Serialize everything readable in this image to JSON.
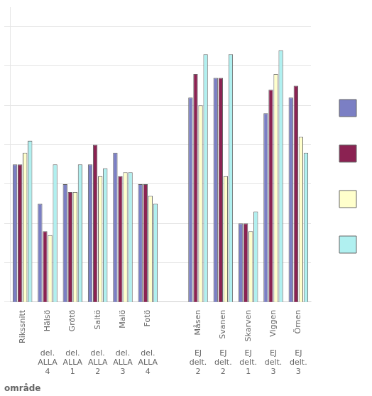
{
  "chart_data": {
    "type": "bar",
    "categories": [
      "Rikssnitt",
      "Hälsö",
      "Grötö",
      "Saltö",
      "Malö",
      "Fotö",
      null,
      "Måsen",
      "Svanen",
      "Skarven",
      "Viggen",
      "Örnen"
    ],
    "series": [
      {
        "color": "#7b7fc4",
        "values": [
          2.65,
          2.55,
          2.6,
          2.65,
          2.68,
          2.6,
          null,
          2.82,
          2.87,
          2.5,
          2.78,
          2.82
        ]
      },
      {
        "color": "#8b2252",
        "values": [
          2.65,
          2.48,
          2.58,
          2.7,
          2.62,
          2.6,
          null,
          2.88,
          2.87,
          2.5,
          2.84,
          2.85
        ]
      },
      {
        "color": "#ffffcc",
        "values": [
          2.68,
          2.47,
          2.58,
          2.62,
          2.63,
          2.57,
          null,
          2.8,
          2.62,
          2.48,
          2.88,
          2.72
        ]
      },
      {
        "color": "#b0f0f0",
        "values": [
          2.71,
          2.65,
          2.65,
          2.64,
          2.63,
          2.55,
          null,
          2.93,
          2.93,
          2.53,
          2.94,
          2.68
        ]
      }
    ],
    "sub_labels": [
      [
        null,
        "del.",
        "del.",
        "del.",
        "del.",
        "del.",
        null,
        "EJ",
        "EJ",
        "EJ",
        "EJ",
        "EJ"
      ],
      [
        null,
        "ALLA",
        "ALLA",
        "ALLA",
        "ALLA",
        "ALLA",
        null,
        "delt.",
        "delt.",
        "delt.",
        "delt.",
        "delt."
      ],
      [
        null,
        "4",
        "1",
        "2",
        "3",
        "4",
        null,
        "2",
        "2",
        "1",
        "3",
        "3"
      ]
    ],
    "xlabel": "område",
    "ylim": [
      2.3,
      3.05
    ],
    "yticks": [
      2.3,
      2.4,
      2.5,
      2.6,
      2.7,
      2.8,
      2.9,
      3.0
    ],
    "grid": true,
    "tick_labels": "x",
    "legend": "right"
  }
}
